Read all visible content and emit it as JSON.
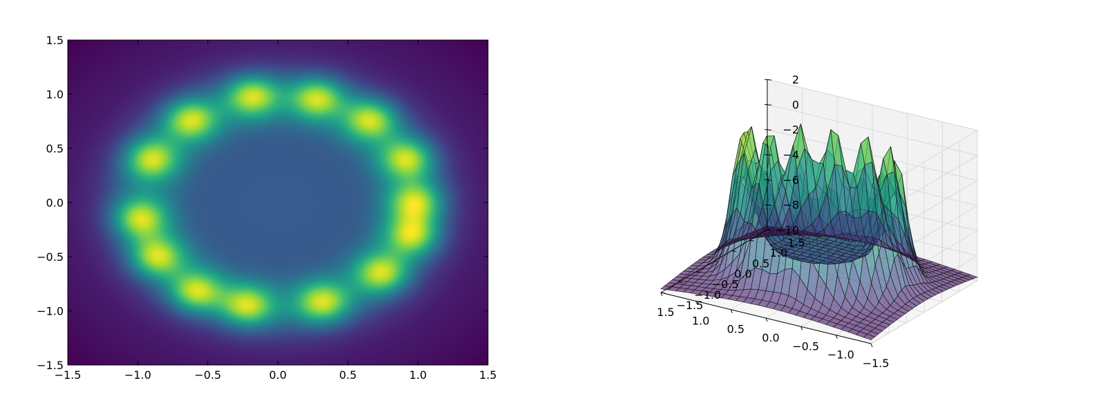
{
  "chart_data": [
    {
      "type": "heatmap",
      "title": "",
      "xlabel": "",
      "ylabel": "",
      "xlim": [
        -1.5,
        1.5
      ],
      "ylim": [
        -1.5,
        1.5
      ],
      "xticks": [
        "−1.5",
        "−1.0",
        "−0.5",
        "0.0",
        "0.5",
        "1.0",
        "1.5"
      ],
      "yticks": [
        "−1.5",
        "−1.0",
        "−0.5",
        "0.0",
        "0.5",
        "1.0",
        "1.5"
      ],
      "colormap": "viridis",
      "grid": false,
      "ring_radius": 1.0,
      "peaks": [
        {
          "x": -0.18,
          "y": 0.98
        },
        {
          "x": 0.28,
          "y": 0.96
        },
        {
          "x": 0.66,
          "y": 0.76
        },
        {
          "x": 0.92,
          "y": 0.4
        },
        {
          "x": 0.98,
          "y": 0.0
        },
        {
          "x": 0.96,
          "y": -0.3
        },
        {
          "x": 0.74,
          "y": -0.65
        },
        {
          "x": 0.32,
          "y": -0.92
        },
        {
          "x": -0.22,
          "y": -0.95
        },
        {
          "x": -0.58,
          "y": -0.82
        },
        {
          "x": -0.86,
          "y": -0.5
        },
        {
          "x": -0.98,
          "y": -0.15
        },
        {
          "x": -0.9,
          "y": 0.4
        },
        {
          "x": -0.62,
          "y": 0.76
        }
      ]
    },
    {
      "type": "surface3d",
      "title": "",
      "xlim": [
        -1.5,
        1.5
      ],
      "ylim": [
        -1.5,
        1.5
      ],
      "zlim": [
        -10,
        2
      ],
      "xticks": [
        "−1.5",
        "−1.0",
        "−0.5",
        "0.0",
        "0.5",
        "1.0",
        "1.5"
      ],
      "yticks": [
        "−1.5",
        "−1.0",
        "−0.5",
        "0.0",
        "0.5",
        "1.0",
        "1.5"
      ],
      "zticks": [
        "−10",
        "−8",
        "−6",
        "−4",
        "−2",
        "0",
        "2"
      ],
      "colormap": "viridis",
      "grid": true
    }
  ]
}
